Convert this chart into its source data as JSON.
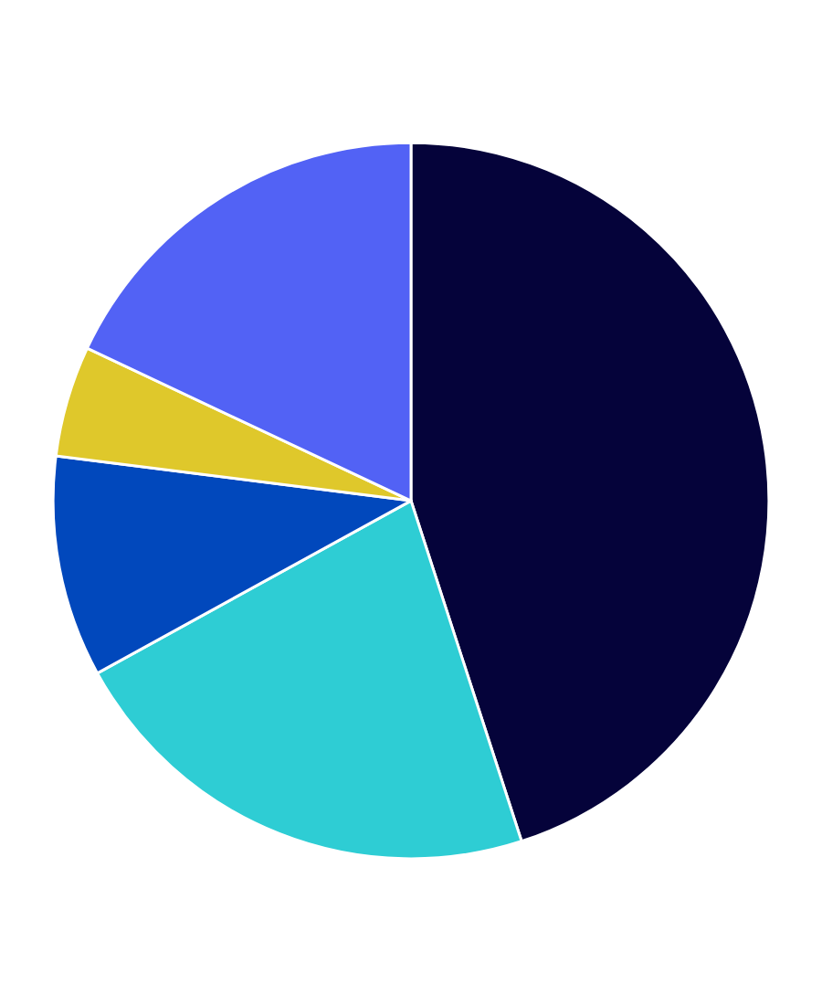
{
  "chart_data": {
    "type": "pie",
    "categories": [
      null,
      null,
      null,
      null,
      null
    ],
    "values": [
      45,
      22,
      10,
      5,
      18
    ],
    "colors": [
      "#05033a",
      "#2ecdd4",
      "#0148bc",
      "#dfc82b",
      "#5262f5"
    ],
    "legend": false
  }
}
